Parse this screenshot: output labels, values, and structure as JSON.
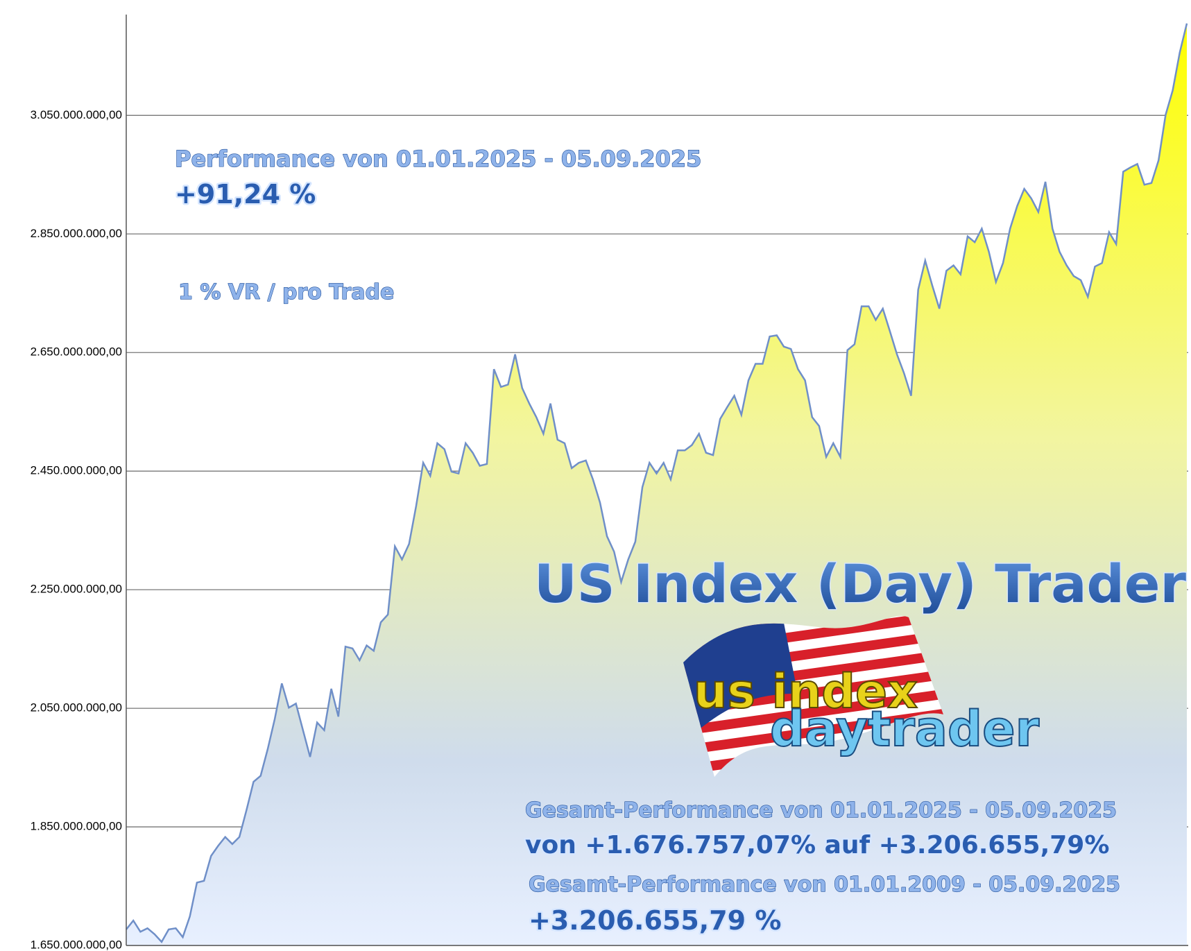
{
  "chart_data": {
    "type": "area",
    "values": [
      1677000000,
      1692000000,
      1673000000,
      1679000000,
      1669000000,
      1656000000,
      1677000000,
      1679000000,
      1664000000,
      1699000000,
      1756000000,
      1759000000,
      1801000000,
      1818000000,
      1833000000,
      1821000000,
      1833000000,
      1878000000,
      1926000000,
      1936000000,
      1981000000,
      2032000000,
      2092000000,
      2051000000,
      2058000000,
      2013000000,
      1968000000,
      2026000000,
      2013000000,
      2083000000,
      2036000000,
      2154000000,
      2151000000,
      2131000000,
      2156000000,
      2147000000,
      2195000000,
      2208000000,
      2323000000,
      2301000000,
      2327000000,
      2391000000,
      2464000000,
      2442000000,
      2497000000,
      2487000000,
      2449000000,
      2446000000,
      2497000000,
      2481000000,
      2459000000,
      2462000000,
      2622000000,
      2592000000,
      2596000000,
      2647000000,
      2590000000,
      2564000000,
      2541000000,
      2513000000,
      2564000000,
      2503000000,
      2497000000,
      2455000000,
      2464000000,
      2468000000,
      2436000000,
      2397000000,
      2340000000,
      2314000000,
      2263000000,
      2301000000,
      2331000000,
      2423000000,
      2464000000,
      2446000000,
      2464000000,
      2436000000,
      2485000000,
      2485000000,
      2494000000,
      2513000000,
      2481000000,
      2477000000,
      2538000000,
      2558000000,
      2577000000,
      2545000000,
      2603000000,
      2631000000,
      2631000000,
      2677000000,
      2679000000,
      2660000000,
      2656000000,
      2622000000,
      2603000000,
      2541000000,
      2526000000,
      2474000000,
      2497000000,
      2474000000,
      2654000000,
      2664000000,
      2728000000,
      2728000000,
      2705000000,
      2724000000,
      2686000000,
      2647000000,
      2615000000,
      2577000000,
      2756000000,
      2805000000,
      2763000000,
      2724000000,
      2788000000,
      2797000000,
      2782000000,
      2846000000,
      2836000000,
      2859000000,
      2820000000,
      2769000000,
      2801000000,
      2859000000,
      2897000000,
      2926000000,
      2910000000,
      2887000000,
      2938000000,
      2859000000,
      2820000000,
      2797000000,
      2779000000,
      2772000000,
      2744000000,
      2795000000,
      2801000000,
      2853000000,
      2833000000,
      2955000000,
      2962000000,
      2968000000,
      2933000000,
      2936000000,
      2974000000,
      3051000000,
      3092000000,
      3156000000,
      3205000000
    ],
    "color": "#ffff00",
    "ylim": [
      1650000000,
      3220000000
    ],
    "yticks": [
      {
        "value": 1650000000,
        "label": "1.650.000.000,00"
      },
      {
        "value": 1850000000,
        "label": "1.850.000.000,00"
      },
      {
        "value": 2050000000,
        "label": "2.050.000.000,00"
      },
      {
        "value": 2250000000,
        "label": "2.250.000.000,00"
      },
      {
        "value": 2450000000,
        "label": "2.450.000.000,00"
      },
      {
        "value": 2650000000,
        "label": "2.650.000.000,00"
      },
      {
        "value": 2850000000,
        "label": "2.850.000.000,00"
      },
      {
        "value": 3050000000,
        "label": "3.050.000.000,00"
      }
    ],
    "grid": true,
    "annotations": [
      "Performance  von  01.01.2025 - 05.09.2025",
      "+91,24 %",
      "1 % VR / pro Trade",
      "US Index (Day) Trader",
      "Gesamt-Performance  von  01.01.2025 - 05.09.2025",
      "von +1.676.757,07% auf  +3.206.655,79%",
      "Gesamt-Performance  von  01.01.2009 - 05.09.2025",
      "+3.206.655,79 %"
    ],
    "logo": [
      "us index",
      "daytrader"
    ]
  }
}
